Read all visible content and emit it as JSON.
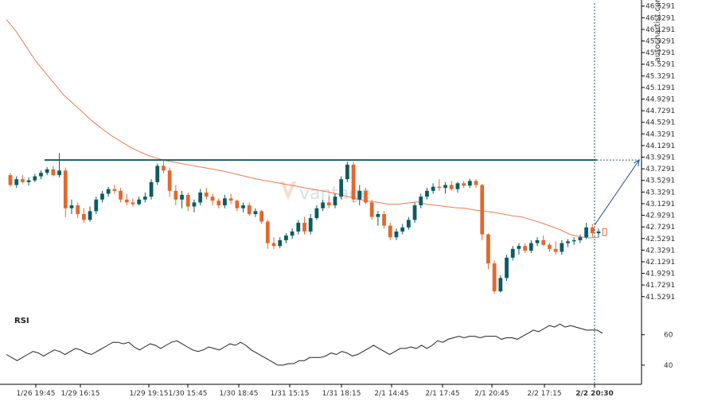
{
  "watermark": "autochartist.com",
  "logo_text": "vantage",
  "chart_data": {
    "type": "candlestick",
    "instrument_interval": "15m",
    "price_axis": {
      "ylim": [
        41.43,
        46.58
      ],
      "ticks": [
        "46.5291",
        "46.3291",
        "46.1291",
        "45.9291",
        "45.7291",
        "45.5291",
        "45.3291",
        "45.1291",
        "44.9291",
        "44.7291",
        "44.5291",
        "44.3291",
        "44.1291",
        "43.9291",
        "43.7291",
        "43.5291",
        "43.3291",
        "43.1291",
        "42.9291",
        "42.7291",
        "42.5291",
        "42.3291",
        "42.1291",
        "41.9291",
        "41.7291",
        "41.5291"
      ]
    },
    "time_axis": {
      "labels": [
        "1/26 19:45",
        "1/29 16:15",
        "1/29 19:15",
        "1/30 15:45",
        "1/30 18:45",
        "1/31 15:15",
        "1/31 18:15",
        "2/1 14:45",
        "2/1 17:45",
        "2/1 20:45",
        "2/2 17:15",
        "2/2 20:30"
      ],
      "highlighted": "2/2 20:30"
    },
    "resistance_level": 43.88,
    "projection": {
      "from": 42.76,
      "to": 43.88
    },
    "colors": {
      "up": "#0b5c63",
      "down": "#e4672e",
      "ma": "#ec7b52",
      "resistance": "#1f5c5e",
      "projection": "#1f4e8c",
      "rsi": "#222222"
    },
    "rsi": {
      "label": "RSI",
      "ticks": [
        60,
        40
      ],
      "ylim": [
        30,
        75
      ],
      "values": [
        47,
        45,
        43,
        45,
        47,
        49,
        48,
        46,
        48,
        50,
        49,
        47,
        49,
        51,
        50,
        48,
        47,
        49,
        51,
        53,
        55,
        55,
        54,
        55,
        52,
        50,
        52,
        54,
        53,
        51,
        53,
        55,
        56,
        54,
        52,
        50,
        49,
        50,
        52,
        51,
        50,
        52,
        54,
        53,
        55,
        53,
        50,
        48,
        46,
        44,
        42,
        40,
        40,
        41,
        41,
        43,
        43,
        45,
        45,
        45,
        46,
        48,
        47,
        49,
        48,
        46,
        47,
        49,
        51,
        53,
        51,
        49,
        47,
        49,
        51,
        51,
        52,
        51,
        53,
        51,
        53,
        56,
        55,
        57,
        58,
        59,
        58,
        59,
        59,
        58,
        59,
        59,
        59,
        57,
        58,
        58,
        57,
        59,
        61,
        63,
        62,
        64,
        66,
        65,
        67,
        65,
        66,
        65,
        64,
        63,
        63,
        63,
        61
      ]
    },
    "candles_note": "approx. 15-minute OHLC series",
    "candles": [
      [
        43.62,
        43.66,
        43.42,
        43.45
      ],
      [
        43.45,
        43.6,
        43.4,
        43.55
      ],
      [
        43.55,
        43.62,
        43.48,
        43.5
      ],
      [
        43.5,
        43.58,
        43.44,
        43.53
      ],
      [
        43.53,
        43.64,
        43.5,
        43.6
      ],
      [
        43.6,
        43.7,
        43.55,
        43.66
      ],
      [
        43.66,
        43.76,
        43.62,
        43.72
      ],
      [
        43.72,
        43.78,
        43.6,
        43.62
      ],
      [
        43.62,
        44.0,
        43.58,
        43.7
      ],
      [
        43.7,
        43.75,
        42.9,
        43.05
      ],
      [
        43.05,
        43.2,
        42.95,
        43.1
      ],
      [
        43.1,
        43.15,
        42.88,
        42.95
      ],
      [
        42.95,
        43.05,
        42.8,
        42.85
      ],
      [
        42.85,
        43.08,
        42.82,
        43.0
      ],
      [
        43.0,
        43.25,
        42.95,
        43.2
      ],
      [
        43.2,
        43.35,
        43.15,
        43.3
      ],
      [
        43.3,
        43.42,
        43.25,
        43.38
      ],
      [
        43.38,
        43.45,
        43.3,
        43.35
      ],
      [
        43.35,
        43.4,
        43.15,
        43.2
      ],
      [
        43.2,
        43.3,
        43.1,
        43.15
      ],
      [
        43.15,
        43.22,
        43.08,
        43.12
      ],
      [
        43.12,
        43.25,
        43.1,
        43.2
      ],
      [
        43.2,
        43.32,
        43.15,
        43.25
      ],
      [
        43.25,
        43.55,
        43.2,
        43.5
      ],
      [
        43.5,
        43.82,
        43.45,
        43.78
      ],
      [
        43.78,
        43.88,
        43.65,
        43.7
      ],
      [
        43.7,
        43.75,
        43.25,
        43.35
      ],
      [
        43.35,
        43.45,
        43.1,
        43.2
      ],
      [
        43.2,
        43.35,
        43.05,
        43.28
      ],
      [
        43.28,
        43.32,
        43.0,
        43.08
      ],
      [
        43.08,
        43.2,
        42.98,
        43.15
      ],
      [
        43.15,
        43.38,
        43.1,
        43.32
      ],
      [
        43.32,
        43.4,
        43.2,
        43.25
      ],
      [
        43.25,
        43.3,
        43.1,
        43.18
      ],
      [
        43.18,
        43.22,
        43.05,
        43.1
      ],
      [
        43.1,
        43.28,
        43.05,
        43.22
      ],
      [
        43.22,
        43.3,
        43.12,
        43.18
      ],
      [
        43.18,
        43.2,
        43.0,
        43.05
      ],
      [
        43.05,
        43.15,
        42.98,
        43.1
      ],
      [
        43.1,
        43.15,
        42.92,
        42.95
      ],
      [
        42.95,
        43.05,
        42.9,
        43.0
      ],
      [
        43.0,
        43.02,
        42.78,
        42.82
      ],
      [
        42.82,
        42.85,
        42.35,
        42.45
      ],
      [
        42.45,
        42.55,
        42.35,
        42.4
      ],
      [
        42.4,
        42.55,
        42.36,
        42.5
      ],
      [
        42.5,
        42.62,
        42.45,
        42.58
      ],
      [
        42.58,
        42.7,
        42.52,
        42.65
      ],
      [
        42.65,
        42.85,
        42.6,
        42.8
      ],
      [
        42.8,
        42.9,
        42.6,
        42.65
      ],
      [
        42.65,
        42.95,
        42.6,
        42.88
      ],
      [
        42.88,
        43.1,
        42.85,
        43.05
      ],
      [
        43.05,
        43.2,
        43.0,
        43.15
      ],
      [
        43.15,
        43.25,
        43.05,
        43.1
      ],
      [
        43.1,
        43.3,
        43.05,
        43.25
      ],
      [
        43.25,
        43.6,
        43.2,
        43.55
      ],
      [
        43.55,
        43.85,
        43.5,
        43.8
      ],
      [
        43.8,
        43.85,
        43.15,
        43.2
      ],
      [
        43.2,
        43.45,
        43.1,
        43.35
      ],
      [
        43.35,
        43.4,
        43.12,
        43.15
      ],
      [
        43.15,
        43.2,
        42.85,
        42.9
      ],
      [
        42.9,
        43.0,
        42.75,
        42.95
      ],
      [
        42.95,
        43.0,
        42.7,
        42.75
      ],
      [
        42.75,
        42.8,
        42.5,
        42.55
      ],
      [
        42.55,
        42.7,
        42.5,
        42.65
      ],
      [
        42.65,
        42.78,
        42.6,
        42.72
      ],
      [
        42.72,
        42.9,
        42.68,
        42.85
      ],
      [
        42.85,
        43.15,
        42.8,
        43.1
      ],
      [
        43.1,
        43.3,
        43.05,
        43.25
      ],
      [
        43.25,
        43.4,
        43.2,
        43.35
      ],
      [
        43.35,
        43.48,
        43.3,
        43.42
      ],
      [
        43.42,
        43.55,
        43.35,
        43.4
      ],
      [
        43.4,
        43.5,
        43.3,
        43.45
      ],
      [
        43.45,
        43.52,
        43.35,
        43.38
      ],
      [
        43.38,
        43.5,
        43.32,
        43.48
      ],
      [
        43.48,
        43.52,
        43.4,
        43.44
      ],
      [
        43.44,
        43.56,
        43.4,
        43.52
      ],
      [
        43.52,
        43.55,
        43.4,
        43.45
      ],
      [
        43.45,
        43.47,
        42.5,
        42.6
      ],
      [
        42.6,
        42.62,
        42.0,
        42.1
      ],
      [
        42.1,
        42.15,
        41.58,
        41.62
      ],
      [
        41.62,
        41.9,
        41.6,
        41.85
      ],
      [
        41.85,
        42.25,
        41.8,
        42.2
      ],
      [
        42.2,
        42.4,
        42.15,
        42.35
      ],
      [
        42.35,
        42.45,
        42.25,
        42.4
      ],
      [
        42.4,
        42.45,
        42.28,
        42.32
      ],
      [
        42.32,
        42.5,
        42.28,
        42.45
      ],
      [
        42.45,
        42.55,
        42.4,
        42.5
      ],
      [
        42.5,
        42.58,
        42.4,
        42.42
      ],
      [
        42.42,
        42.45,
        42.3,
        42.35
      ],
      [
        42.35,
        42.48,
        42.25,
        42.3
      ],
      [
        42.3,
        42.5,
        42.25,
        42.45
      ],
      [
        42.45,
        42.52,
        42.38,
        42.48
      ],
      [
        42.48,
        42.55,
        42.42,
        42.5
      ],
      [
        42.5,
        42.6,
        42.45,
        42.55
      ],
      [
        42.55,
        42.8,
        42.52,
        42.72
      ],
      [
        42.72,
        42.78,
        42.55,
        42.62
      ],
      [
        42.62,
        42.7,
        42.55,
        42.65
      ]
    ],
    "ma": [
      46.3,
      46.1,
      45.85,
      45.6,
      45.4,
      45.2,
      45.0,
      44.85,
      44.7,
      44.55,
      44.42,
      44.3,
      44.2,
      44.1,
      44.02,
      43.95,
      43.9,
      43.86,
      43.83,
      43.8,
      43.77,
      43.74,
      43.71,
      43.68,
      43.64,
      43.6,
      43.56,
      43.53,
      43.5,
      43.47,
      43.44,
      43.41,
      43.38,
      43.35,
      43.32,
      43.28,
      43.24,
      43.2,
      43.17,
      43.15,
      43.12,
      43.12,
      43.14,
      43.16,
      43.12,
      43.1,
      43.08,
      43.06,
      43.05,
      43.02,
      43.0,
      42.98,
      42.95,
      42.92,
      42.9,
      42.85,
      42.8,
      42.74,
      42.68,
      42.6,
      42.56,
      42.54,
      42.55
    ]
  }
}
